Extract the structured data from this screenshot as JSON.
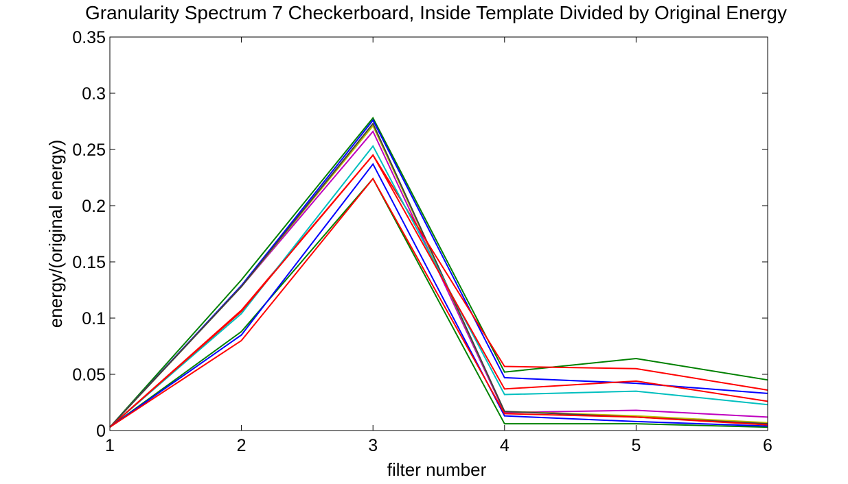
{
  "chart_data": {
    "type": "line",
    "title": "Granularity Spectrum 7 Checkerboard, Inside Template Divided by Original Energy",
    "xlabel": "filter number",
    "ylabel": "energy/(original energy)",
    "xlim": [
      1,
      6
    ],
    "ylim": [
      0,
      0.35
    ],
    "x_ticks": [
      "1",
      "2",
      "3",
      "4",
      "5",
      "6"
    ],
    "y_ticks": [
      "0",
      "0.05",
      "0.1",
      "0.15",
      "0.2",
      "0.25",
      "0.3",
      "0.35"
    ],
    "grid": false,
    "legend": "none",
    "x": [
      1,
      2,
      3,
      4,
      5,
      6
    ],
    "series": [
      {
        "color": "#008000",
        "values": [
          0.003,
          0.134,
          0.278,
          0.052,
          0.064,
          0.045
        ]
      },
      {
        "color": "#0000ff",
        "values": [
          0.003,
          0.129,
          0.276,
          0.047,
          0.042,
          0.033
        ]
      },
      {
        "color": "#bf00bf",
        "values": [
          0.003,
          0.128,
          0.266,
          0.016,
          0.018,
          0.012
        ]
      },
      {
        "color": "#bfbf00",
        "values": [
          0.003,
          0.128,
          0.271,
          0.017,
          0.013,
          0.007
        ]
      },
      {
        "color": "#404040",
        "values": [
          0.003,
          0.128,
          0.273,
          0.017,
          0.012,
          0.006
        ]
      },
      {
        "color": "#ff0000",
        "values": [
          0.003,
          0.107,
          0.245,
          0.057,
          0.055,
          0.036
        ]
      },
      {
        "color": "#00bfbf",
        "values": [
          0.003,
          0.104,
          0.253,
          0.032,
          0.035,
          0.023
        ]
      },
      {
        "color": "#ff0000",
        "values": [
          0.003,
          0.106,
          0.245,
          0.037,
          0.044,
          0.026
        ]
      },
      {
        "color": "#008000",
        "values": [
          0.003,
          0.088,
          0.224,
          0.006,
          0.006,
          0.003
        ]
      },
      {
        "color": "#0000ff",
        "values": [
          0.003,
          0.085,
          0.237,
          0.013,
          0.008,
          0.004
        ]
      },
      {
        "color": "#ff0000",
        "values": [
          0.003,
          0.08,
          0.224,
          0.015,
          0.012,
          0.005
        ]
      }
    ]
  }
}
